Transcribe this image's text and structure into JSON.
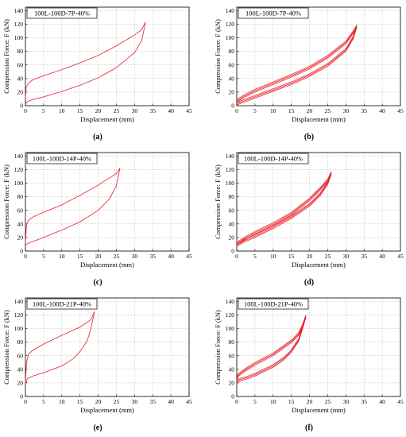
{
  "chart_data": [
    {
      "type": "line",
      "panel_label": "(a)",
      "legend_text": "100L-100D-7P-40%",
      "xlabel": "Displacement (mm)",
      "ylabel": "Compression Force: F (kN)",
      "xlim": [
        0,
        45
      ],
      "ylim": [
        0,
        145
      ],
      "xticks": [
        0,
        5,
        10,
        15,
        20,
        25,
        30,
        35,
        40,
        45
      ],
      "yticks": [
        0,
        20,
        40,
        60,
        80,
        100,
        120,
        140
      ],
      "grid": true,
      "series": [
        {
          "cycles": 1,
          "loading": [
            [
              0,
              2
            ],
            [
              0.5,
              6
            ],
            [
              2,
              9
            ],
            [
              5,
              13
            ],
            [
              10,
              21
            ],
            [
              15,
              30
            ],
            [
              20,
              41
            ],
            [
              25,
              56
            ],
            [
              30,
              78
            ],
            [
              32,
              96
            ],
            [
              33,
              123
            ]
          ],
          "unloading": [
            [
              33,
              123
            ],
            [
              32,
              112
            ],
            [
              30,
              104
            ],
            [
              25,
              88
            ],
            [
              20,
              74
            ],
            [
              15,
              63
            ],
            [
              10,
              53
            ],
            [
              5,
              44
            ],
            [
              2,
              38
            ],
            [
              0.8,
              33
            ],
            [
              0.2,
              27
            ],
            [
              0,
              12
            ]
          ]
        }
      ]
    },
    {
      "type": "line",
      "panel_label": "(b)",
      "legend_text": "100L-100D-7P-40%",
      "xlabel": "Displacement (mm)",
      "ylabel": "Compression Force: F (kN)",
      "xlim": [
        0,
        45
      ],
      "ylim": [
        0,
        145
      ],
      "xticks": [
        0,
        5,
        10,
        15,
        20,
        25,
        30,
        35,
        40,
        45
      ],
      "yticks": [
        0,
        20,
        40,
        60,
        80,
        100,
        120,
        140
      ],
      "grid": true,
      "series": [
        {
          "cycles": 3,
          "loading": [
            [
              0,
              3
            ],
            [
              2,
              7
            ],
            [
              5,
              13
            ],
            [
              10,
              23
            ],
            [
              15,
              33
            ],
            [
              20,
              45
            ],
            [
              25,
              60
            ],
            [
              30,
              82
            ],
            [
              32,
              100
            ],
            [
              33,
              117
            ]
          ],
          "unloading": [
            [
              33,
              117
            ],
            [
              32,
              108
            ],
            [
              30,
              93
            ],
            [
              25,
              72
            ],
            [
              20,
              56
            ],
            [
              15,
              44
            ],
            [
              10,
              33
            ],
            [
              5,
              22
            ],
            [
              2,
              14
            ],
            [
              0,
              7
            ]
          ]
        }
      ]
    },
    {
      "type": "line",
      "panel_label": "(c)",
      "legend_text": "100L-100D-14P-40%",
      "xlabel": "Displacement (mm)",
      "ylabel": "Compression Force: F (kN)",
      "xlim": [
        0,
        45
      ],
      "ylim": [
        0,
        145
      ],
      "xticks": [
        0,
        5,
        10,
        15,
        20,
        25,
        30,
        35,
        40,
        45
      ],
      "yticks": [
        0,
        20,
        40,
        60,
        80,
        100,
        120,
        140
      ],
      "grid": true,
      "series": [
        {
          "cycles": 1,
          "loading": [
            [
              0,
              9
            ],
            [
              1,
              12
            ],
            [
              5,
              20
            ],
            [
              10,
              31
            ],
            [
              15,
              43
            ],
            [
              20,
              60
            ],
            [
              23,
              76
            ],
            [
              25,
              96
            ],
            [
              26,
              122
            ]
          ],
          "unloading": [
            [
              26,
              122
            ],
            [
              25,
              114
            ],
            [
              22,
              104
            ],
            [
              20,
              97
            ],
            [
              15,
              82
            ],
            [
              10,
              68
            ],
            [
              5,
              57
            ],
            [
              2,
              50
            ],
            [
              0.8,
              45
            ],
            [
              0.3,
              38
            ],
            [
              0,
              12
            ]
          ]
        }
      ]
    },
    {
      "type": "line",
      "panel_label": "(d)",
      "legend_text": "100L-100D-14P-40%",
      "xlabel": "Displacement (mm)",
      "ylabel": "Compression Force: F (kN)",
      "xlim": [
        0,
        45
      ],
      "ylim": [
        0,
        145
      ],
      "xticks": [
        0,
        5,
        10,
        15,
        20,
        25,
        30,
        35,
        40,
        45
      ],
      "yticks": [
        0,
        20,
        40,
        60,
        80,
        100,
        120,
        140
      ],
      "grid": true,
      "series": [
        {
          "cycles": 3,
          "loading": [
            [
              0,
              9
            ],
            [
              2,
              15
            ],
            [
              5,
              22
            ],
            [
              10,
              35
            ],
            [
              15,
              50
            ],
            [
              20,
              68
            ],
            [
              23,
              84
            ],
            [
              25,
              100
            ],
            [
              26,
              115
            ]
          ],
          "unloading": [
            [
              26,
              115
            ],
            [
              25,
              104
            ],
            [
              23,
              92
            ],
            [
              20,
              76
            ],
            [
              15,
              55
            ],
            [
              10,
              40
            ],
            [
              5,
              27
            ],
            [
              2,
              18
            ],
            [
              0,
              11
            ]
          ]
        }
      ]
    },
    {
      "type": "line",
      "panel_label": "(e)",
      "legend_text": "100L-100D-21P-40%",
      "xlabel": "Displacement (mm)",
      "ylabel": "Compression Force: F (kN)",
      "xlim": [
        0,
        45
      ],
      "ylim": [
        0,
        145
      ],
      "xticks": [
        0,
        5,
        10,
        15,
        20,
        25,
        30,
        35,
        40,
        45
      ],
      "yticks": [
        0,
        20,
        40,
        60,
        80,
        100,
        120,
        140
      ],
      "grid": true,
      "series": [
        {
          "cycles": 1,
          "loading": [
            [
              0,
              18
            ],
            [
              0.5,
              26
            ],
            [
              2,
              30
            ],
            [
              5,
              35
            ],
            [
              10,
              45
            ],
            [
              13,
              55
            ],
            [
              15,
              66
            ],
            [
              17,
              82
            ],
            [
              18,
              100
            ],
            [
              19,
              125
            ]
          ],
          "unloading": [
            [
              19,
              125
            ],
            [
              18,
              113
            ],
            [
              15,
              102
            ],
            [
              10,
              90
            ],
            [
              5,
              77
            ],
            [
              2,
              68
            ],
            [
              0.8,
              62
            ],
            [
              0.3,
              50
            ],
            [
              0,
              20
            ]
          ]
        }
      ]
    },
    {
      "type": "line",
      "panel_label": "(f)",
      "legend_text": "100L-100D-21P-40%",
      "xlabel": "Displacement (mm)",
      "ylabel": "Compression Force: F (kN)",
      "xlim": [
        0,
        45
      ],
      "ylim": [
        0,
        145
      ],
      "xticks": [
        0,
        5,
        10,
        15,
        20,
        25,
        30,
        35,
        40,
        45
      ],
      "yticks": [
        0,
        20,
        40,
        60,
        80,
        100,
        120,
        140
      ],
      "grid": true,
      "series": [
        {
          "cycles": 3,
          "loading": [
            [
              0,
              22
            ],
            [
              1,
              25
            ],
            [
              3,
              28
            ],
            [
              5,
              32
            ],
            [
              10,
              45
            ],
            [
              13,
              56
            ],
            [
              15,
              67
            ],
            [
              17,
              83
            ],
            [
              18,
              100
            ],
            [
              19,
              118
            ]
          ],
          "unloading": [
            [
              19,
              118
            ],
            [
              18,
              103
            ],
            [
              17,
              92
            ],
            [
              15,
              81
            ],
            [
              10,
              62
            ],
            [
              5,
              48
            ],
            [
              2,
              38
            ],
            [
              0.5,
              32
            ],
            [
              0,
              26
            ]
          ]
        }
      ]
    }
  ],
  "colors": {
    "curve": "#e8202a",
    "grid": "#b4b4b4",
    "axis": "#000000"
  }
}
